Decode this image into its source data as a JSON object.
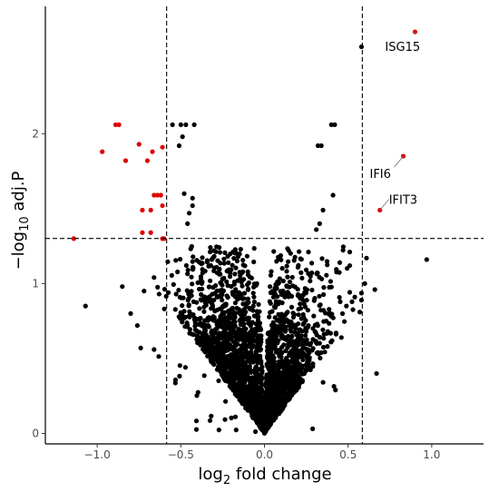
{
  "chart_data": {
    "type": "scatter",
    "title": "",
    "xlabel_main": "log",
    "xlabel_sub": "2",
    "xlabel_tail": " fold change",
    "ylabel_prefix": "−log",
    "ylabel_sub": "10",
    "ylabel_tail": " adj.P",
    "xlim": [
      -1.31,
      1.31
    ],
    "ylim": [
      -0.07,
      2.85
    ],
    "xticks": [
      -1.0,
      -0.5,
      0.0,
      0.5,
      1.0
    ],
    "xtick_labels": [
      "−1.0",
      "−0.5",
      "0.0",
      "0.5",
      "1.0"
    ],
    "yticks": [
      0,
      1,
      2
    ],
    "ytick_labels": [
      "0",
      "1",
      "2"
    ],
    "thresholds": {
      "logfc": [
        -0.585,
        0.585
      ],
      "neglog10p": 1.301
    },
    "grid": false,
    "legend": "none",
    "colors": {
      "significant": "#e00000",
      "other": "#000000"
    },
    "significant_points": [
      [
        -1.14,
        1.3
      ],
      [
        -0.97,
        1.88
      ],
      [
        -0.89,
        2.06
      ],
      [
        -0.87,
        2.06
      ],
      [
        -0.83,
        1.82
      ],
      [
        -0.75,
        1.93
      ],
      [
        -0.73,
        1.49
      ],
      [
        -0.73,
        1.34
      ],
      [
        -0.7,
        1.82
      ],
      [
        -0.68,
        1.49
      ],
      [
        -0.68,
        1.34
      ],
      [
        -0.67,
        1.88
      ],
      [
        -0.66,
        1.59
      ],
      [
        -0.64,
        1.59
      ],
      [
        -0.62,
        1.59
      ],
      [
        -0.61,
        1.52
      ],
      [
        -0.61,
        1.91
      ],
      [
        -0.61,
        1.3
      ],
      [
        -0.6,
        1.3
      ],
      [
        0.9,
        2.68
      ],
      [
        0.83,
        1.85
      ],
      [
        0.69,
        1.49
      ]
    ],
    "nonsig_points": [
      [
        -1.07,
        0.85
      ],
      [
        -0.8,
        0.8
      ],
      [
        -0.76,
        0.72
      ],
      [
        -0.74,
        0.57
      ],
      [
        -0.72,
        0.95
      ],
      [
        -0.66,
        0.56
      ],
      [
        -0.85,
        0.98
      ],
      [
        -0.63,
        0.93
      ],
      [
        -0.55,
        2.06
      ],
      [
        -0.5,
        2.06
      ],
      [
        -0.47,
        2.06
      ],
      [
        -0.42,
        2.06
      ],
      [
        -0.49,
        1.98
      ],
      [
        -0.51,
        1.92
      ],
      [
        -0.48,
        1.6
      ],
      [
        -0.43,
        1.52
      ],
      [
        -0.46,
        1.4
      ],
      [
        -0.45,
        1.47
      ],
      [
        -0.43,
        1.57
      ],
      [
        0.58,
        2.58
      ],
      [
        0.42,
        2.06
      ],
      [
        0.4,
        2.06
      ],
      [
        0.34,
        1.92
      ],
      [
        0.32,
        1.92
      ],
      [
        0.41,
        1.59
      ],
      [
        0.35,
        1.49
      ],
      [
        0.33,
        1.4
      ],
      [
        0.31,
        1.36
      ],
      [
        0.97,
        1.16
      ],
      [
        0.61,
        1.17
      ],
      [
        0.45,
        1.14
      ],
      [
        0.51,
        1.12
      ],
      [
        0.6,
        1.0
      ],
      [
        0.66,
        0.96
      ],
      [
        0.57,
        0.81
      ],
      [
        0.67,
        0.4
      ],
      [
        0.49,
        0.85
      ],
      [
        0.46,
        0.64
      ],
      [
        0.54,
        0.91
      ]
    ],
    "annotations": [
      {
        "label": "ISG15",
        "x": 0.9,
        "y": 2.68
      },
      {
        "label": "IFI6",
        "x": 0.83,
        "y": 1.85
      },
      {
        "label": "IFIT3",
        "x": 0.69,
        "y": 1.49
      }
    ],
    "cloud": {
      "count": 2600,
      "k": 0.029
    }
  }
}
